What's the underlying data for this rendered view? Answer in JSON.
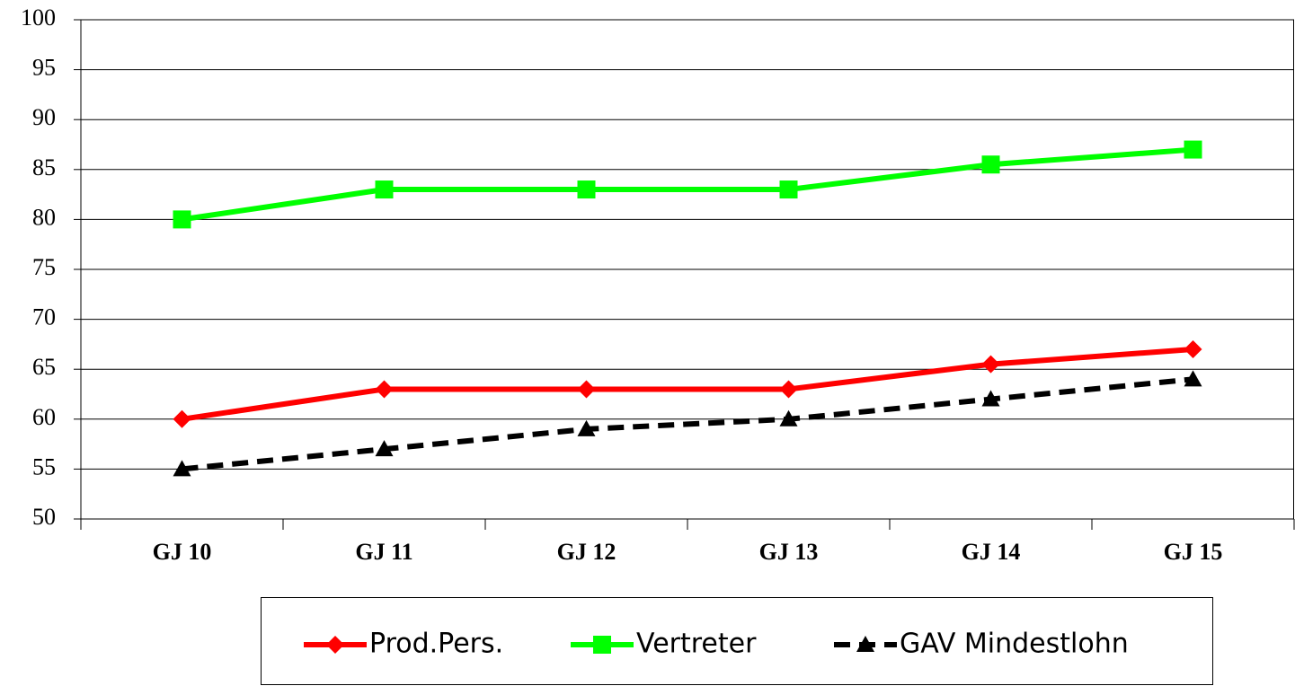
{
  "chart_data": {
    "type": "line",
    "categories": [
      "GJ 10",
      "GJ 11",
      "GJ 12",
      "GJ 13",
      "GJ 14",
      "GJ 15"
    ],
    "series": [
      {
        "name": "Prod.Pers.",
        "color": "#ff0000",
        "marker": "diamond",
        "dash": false,
        "values": [
          60,
          63,
          63,
          63,
          65.5,
          67
        ]
      },
      {
        "name": "Vertreter",
        "color": "#00ff00",
        "marker": "square",
        "dash": false,
        "values": [
          80,
          83,
          83,
          83,
          85.5,
          87
        ]
      },
      {
        "name": "GAV Mindestlohn",
        "color": "#000000",
        "marker": "triangle",
        "dash": true,
        "values": [
          55,
          57,
          59,
          60,
          62,
          64
        ]
      }
    ],
    "ylim": [
      50,
      100
    ],
    "yticks": [
      50,
      55,
      60,
      65,
      70,
      75,
      80,
      85,
      90,
      95,
      100
    ],
    "grid": true,
    "legend": "bottom"
  }
}
